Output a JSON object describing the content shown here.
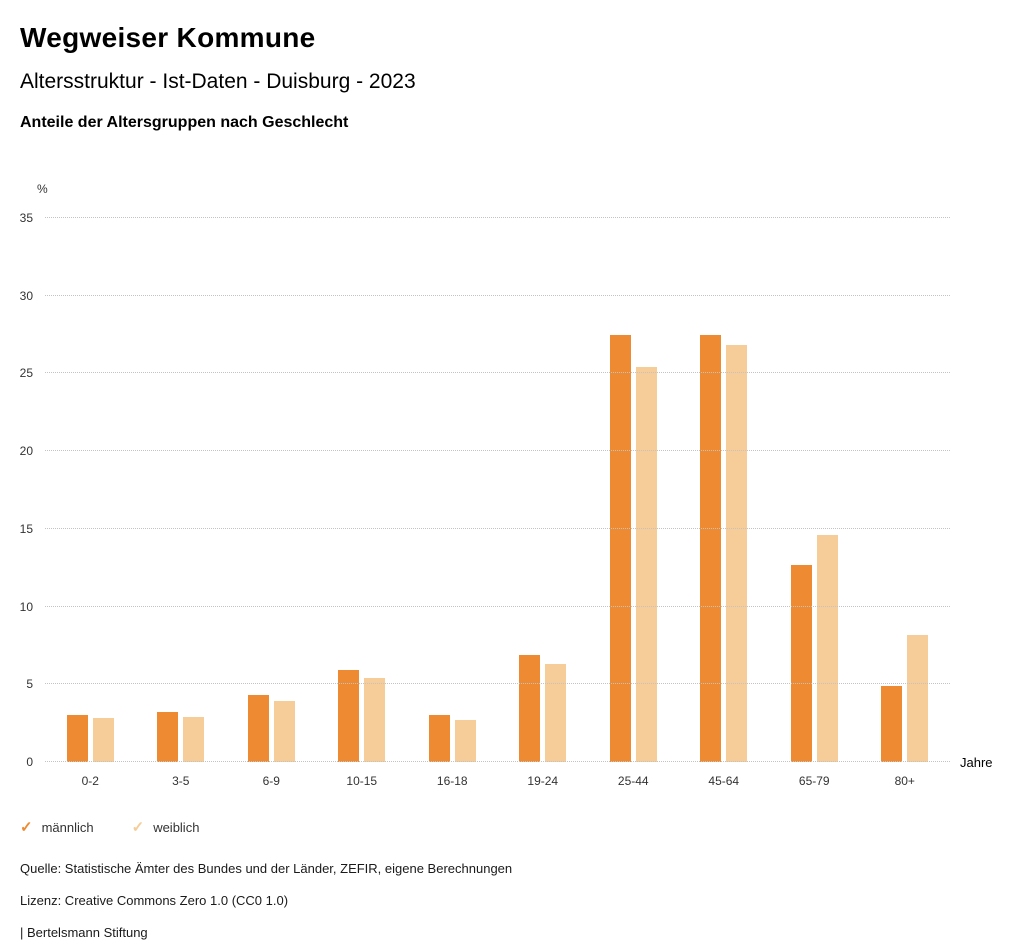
{
  "header": {
    "title": "Wegweiser Kommune",
    "subtitle": "Altersstruktur - Ist-Daten - Duisburg - 2023",
    "chart_heading": "Anteile der Altersgruppen nach Geschlecht"
  },
  "chart_data": {
    "type": "bar",
    "title": "Anteile der Altersgruppen nach Geschlecht",
    "unit_label": "%",
    "xlabel": "Jahre",
    "ylabel": "%",
    "categories": [
      "0-2",
      "3-5",
      "6-9",
      "10-15",
      "16-18",
      "19-24",
      "25-44",
      "45-64",
      "65-79",
      "80+"
    ],
    "series": [
      {
        "name": "männlich",
        "color": "#EE8A31",
        "values": [
          3.0,
          3.2,
          4.3,
          5.9,
          3.0,
          6.9,
          27.5,
          27.5,
          12.7,
          4.9
        ]
      },
      {
        "name": "weiblich",
        "color": "#F6CC98",
        "values": [
          2.8,
          2.9,
          3.9,
          5.4,
          2.7,
          6.3,
          25.4,
          26.8,
          14.6,
          8.2
        ]
      }
    ],
    "ylim": [
      0,
      35
    ],
    "yticks": [
      0,
      5,
      10,
      15,
      20,
      25,
      30,
      35
    ],
    "grid": true,
    "grid_style": "dotted",
    "legend_position": "bottom-left"
  },
  "legend": {
    "items": [
      {
        "label": "männlich",
        "color": "#EE8A31",
        "check": "✓"
      },
      {
        "label": "weiblich",
        "color": "#F6CC98",
        "check": "✓"
      }
    ]
  },
  "footer": {
    "source": "Quelle: Statistische Ämter des Bundes und der Länder, ZEFIR, eigene Berechnungen",
    "license": "Lizenz: Creative Commons Zero 1.0 (CC0 1.0)",
    "attribution": "| Bertelsmann Stiftung"
  }
}
